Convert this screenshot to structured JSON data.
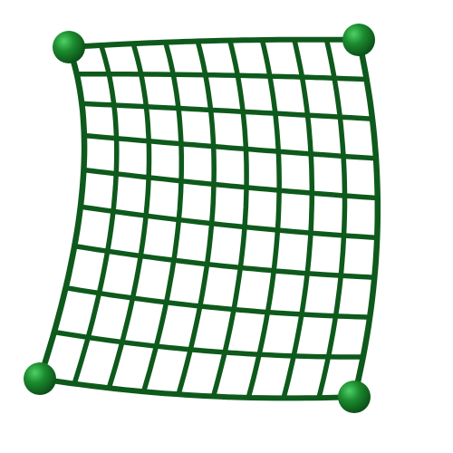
{
  "icon": {
    "name": "warp-mesh-icon",
    "description_visible_text": "",
    "colors": {
      "mesh_stroke": "#0e5a1c",
      "handle_fill": "#1b8a2e",
      "handle_dark": "#0f5c1d",
      "handle_highlight": "#3fbf55",
      "background": "#ffffff"
    },
    "mesh": {
      "horizontal_lines": 10,
      "vertical_lines": 10
    },
    "handles": [
      "top-left",
      "top-right",
      "bottom-left",
      "bottom-right"
    ]
  }
}
